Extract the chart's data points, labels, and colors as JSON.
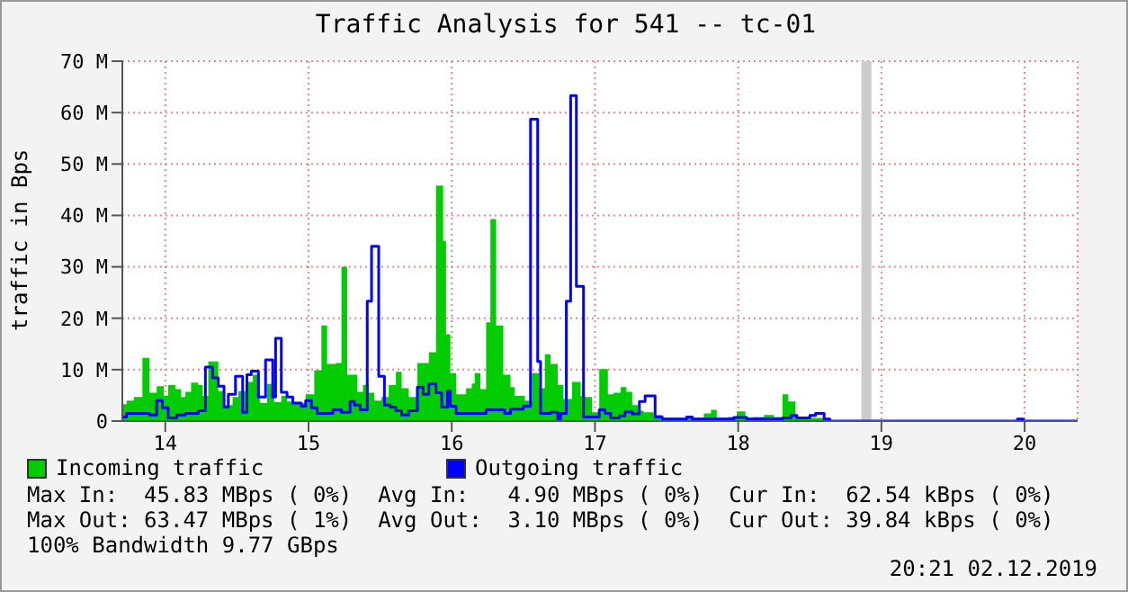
{
  "chart_data": {
    "type": "area",
    "title": "Traffic Analysis for 541 -- tc-01",
    "ylabel": "traffic in Bps",
    "xlim": [
      13.7,
      20.37
    ],
    "xticks": [
      14,
      15,
      16,
      17,
      18,
      19,
      20
    ],
    "ylim": [
      0,
      70
    ],
    "yticks": [
      0,
      {
        "value": 10,
        "label": "10 M"
      },
      {
        "value": 20,
        "label": "20 M"
      },
      {
        "value": 30,
        "label": "30 M"
      },
      {
        "value": 40,
        "label": "40 M"
      },
      {
        "value": 50,
        "label": "50 M"
      },
      {
        "value": 60,
        "label": "60 M"
      },
      {
        "value": 70,
        "label": "70 M"
      }
    ],
    "grid": true,
    "legend": "bottom left",
    "bands": [
      {
        "axis": "x",
        "from": 18.86,
        "to": 18.93,
        "color": "#cccccc"
      }
    ],
    "series": [
      {
        "name": "Incoming traffic",
        "color": "#00cc00",
        "x": [
          13.7,
          13.73,
          13.78,
          13.84,
          13.89,
          13.94,
          13.99,
          14.02,
          14.07,
          14.11,
          14.14,
          14.18,
          14.23,
          14.26,
          14.3,
          14.37,
          14.41,
          14.47,
          14.51,
          14.57,
          14.61,
          14.66,
          14.71,
          14.76,
          14.81,
          14.85,
          14.89,
          14.94,
          14.98,
          15.04,
          15.09,
          15.13,
          15.19,
          15.23,
          15.27,
          15.34,
          15.38,
          15.42,
          15.46,
          15.51,
          15.56,
          15.61,
          15.65,
          15.7,
          15.76,
          15.84,
          15.89,
          15.94,
          15.96,
          15.99,
          16.03,
          16.1,
          16.14,
          16.16,
          16.2,
          16.24,
          16.27,
          16.31,
          16.36,
          16.41,
          16.44,
          16.51,
          16.56,
          16.61,
          16.65,
          16.69,
          16.74,
          16.78,
          16.84,
          16.9,
          16.93,
          16.98,
          17.03,
          17.09,
          17.13,
          17.18,
          17.22,
          17.26,
          17.3,
          17.34,
          17.41,
          17.47,
          17.76,
          17.81,
          17.85,
          17.93,
          17.99,
          18.05,
          18.1,
          18.18,
          18.25,
          18.31,
          18.35,
          18.4,
          18.48,
          18.6,
          18.64,
          20.37
        ],
        "values": [
          3.3,
          4,
          4.7,
          12.3,
          5.5,
          6.8,
          4.9,
          7,
          6.2,
          4.7,
          5.7,
          7.5,
          7,
          4.9,
          11.6,
          5.8,
          3.1,
          4.7,
          5.8,
          7.6,
          9,
          3.5,
          7.2,
          3.7,
          4.9,
          3.8,
          3.5,
          3.5,
          5.2,
          9.9,
          18.6,
          11.1,
          11.3,
          30,
          9,
          5.7,
          7,
          5.5,
          4,
          4.7,
          7,
          9.6,
          6.4,
          4.7,
          11.3,
          13.4,
          45.8,
          35,
          16.9,
          9.3,
          5.2,
          6.4,
          7.3,
          9.3,
          6.2,
          19.2,
          39.3,
          18.6,
          9,
          6.6,
          4.9,
          4,
          9.3,
          6.4,
          13,
          11.1,
          7,
          4.3,
          7.6,
          4.9,
          4.7,
          1.7,
          10.1,
          5.2,
          5.5,
          6.6,
          5.7,
          3.1,
          2,
          1.7,
          1.2,
          0.6,
          1.5,
          2.2,
          0.6,
          0.8,
          1.9,
          0.6,
          0.8,
          1.2,
          0.8,
          5.2,
          3.8,
          0.8,
          0.6,
          0.4,
          0,
          0
        ]
      },
      {
        "name": "Outgoing traffic",
        "type": "step",
        "color": "#0000ff",
        "x": [
          13.7,
          13.73,
          13.89,
          13.94,
          13.98,
          14.02,
          14.08,
          14.14,
          14.23,
          14.28,
          14.33,
          14.37,
          14.41,
          14.44,
          14.49,
          14.54,
          14.57,
          14.6,
          14.65,
          14.7,
          14.75,
          14.77,
          14.81,
          14.85,
          14.89,
          14.95,
          14.98,
          15.02,
          15.06,
          15.17,
          15.23,
          15.29,
          15.32,
          15.36,
          15.41,
          15.44,
          15.49,
          15.53,
          15.57,
          15.61,
          15.65,
          15.7,
          15.76,
          15.8,
          15.84,
          15.89,
          15.93,
          15.97,
          15.99,
          16.03,
          16.24,
          16.37,
          16.41,
          16.5,
          16.55,
          16.6,
          16.62,
          16.69,
          16.74,
          16.76,
          16.8,
          16.83,
          16.87,
          16.92,
          17.03,
          17.07,
          17.11,
          17.17,
          17.21,
          17.26,
          17.31,
          17.35,
          17.42,
          17.47,
          17.64,
          17.68,
          17.97,
          18.06,
          18.31,
          18.37,
          18.41,
          18.5,
          18.54,
          18.6,
          18.64,
          19.95,
          19.99,
          20.37
        ],
        "values": [
          0.8,
          1.5,
          1.2,
          4,
          2.6,
          0.6,
          1.2,
          1.5,
          2,
          10.5,
          8.4,
          6.8,
          2.7,
          5.2,
          8.7,
          1.7,
          9,
          9.7,
          4.7,
          11.9,
          4.7,
          16.1,
          5.6,
          4.7,
          3.5,
          2.9,
          4,
          2.6,
          1.5,
          2.2,
          1.7,
          3.8,
          3.1,
          2.2,
          23.3,
          34,
          8.7,
          3.1,
          2.7,
          2,
          1.2,
          2,
          6.6,
          5.2,
          7.2,
          5.5,
          2.7,
          5.8,
          2.9,
          1.5,
          2.2,
          1.5,
          2.3,
          2.9,
          58.7,
          11.6,
          1.5,
          1.7,
          0.4,
          1.5,
          23.3,
          63.3,
          26.2,
          0.8,
          2.2,
          1.5,
          0.6,
          1,
          1.8,
          1.4,
          3.8,
          4.9,
          0.8,
          0.4,
          0.8,
          0.4,
          0.7,
          0.4,
          0.6,
          1.1,
          0.6,
          1.1,
          1.5,
          0.4,
          0,
          0.4,
          0,
          0
        ]
      }
    ],
    "annotations": [
      "Max In:  45.83 MBps ( 0%)  Avg In:   4.90 MBps ( 0%)  Cur In:  62.54 kBps ( 0%)",
      "Max Out: 63.47 MBps ( 1%)  Avg Out:  3.10 MBps ( 0%)  Cur Out: 39.84 kBps ( 0%)",
      "100% Bandwidth 9.77 GBps",
      "20:21 02.12.2019"
    ]
  }
}
